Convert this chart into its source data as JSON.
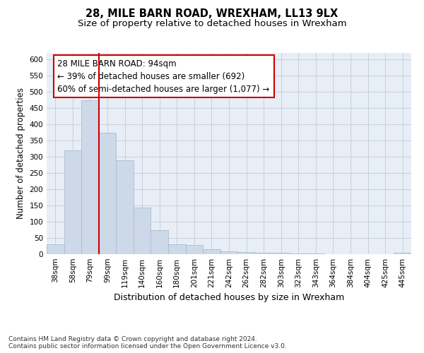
{
  "title": "28, MILE BARN ROAD, WREXHAM, LL13 9LX",
  "subtitle": "Size of property relative to detached houses in Wrexham",
  "xlabel": "Distribution of detached houses by size in Wrexham",
  "ylabel": "Number of detached properties",
  "bar_labels": [
    "38sqm",
    "58sqm",
    "79sqm",
    "99sqm",
    "119sqm",
    "140sqm",
    "160sqm",
    "180sqm",
    "201sqm",
    "221sqm",
    "242sqm",
    "262sqm",
    "282sqm",
    "303sqm",
    "323sqm",
    "343sqm",
    "364sqm",
    "384sqm",
    "404sqm",
    "425sqm",
    "445sqm"
  ],
  "bar_values": [
    31,
    320,
    474,
    374,
    290,
    144,
    75,
    31,
    28,
    16,
    9,
    7,
    5,
    4,
    2,
    2,
    1,
    0,
    0,
    0,
    4
  ],
  "bar_color": "#cdd9e8",
  "bar_edgecolor": "#a8bdd0",
  "vline_color": "#cc0000",
  "annotation_text": "28 MILE BARN ROAD: 94sqm\n← 39% of detached houses are smaller (692)\n60% of semi-detached houses are larger (1,077) →",
  "annotation_box_facecolor": "white",
  "annotation_box_edgecolor": "#cc0000",
  "ylim": [
    0,
    620
  ],
  "yticks": [
    0,
    50,
    100,
    150,
    200,
    250,
    300,
    350,
    400,
    450,
    500,
    550,
    600
  ],
  "grid_color": "#c8d0dc",
  "background_color": "#e8eef6",
  "footer_text": "Contains HM Land Registry data © Crown copyright and database right 2024.\nContains public sector information licensed under the Open Government Licence v3.0.",
  "title_fontsize": 10.5,
  "subtitle_fontsize": 9.5,
  "xlabel_fontsize": 9,
  "ylabel_fontsize": 8.5,
  "tick_fontsize": 7.5,
  "annotation_fontsize": 8.5,
  "footer_fontsize": 6.5
}
